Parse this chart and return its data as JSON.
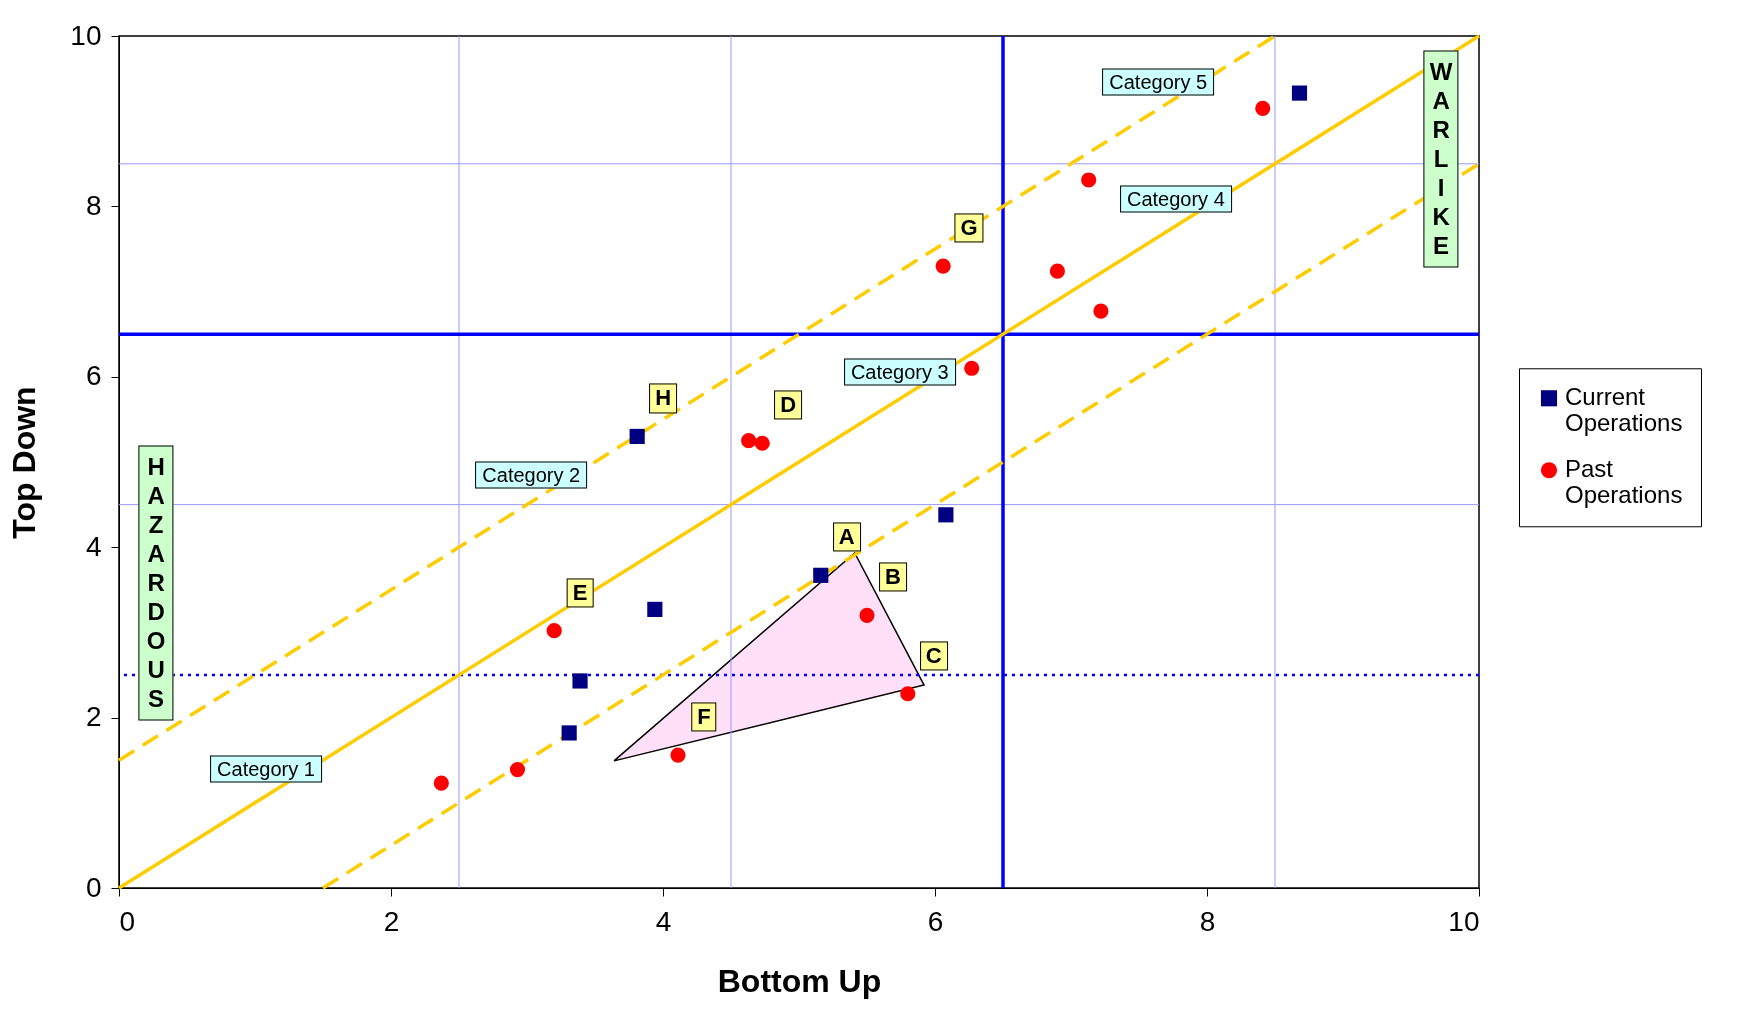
{
  "chart_data": {
    "type": "scatter",
    "xlabel": "Bottom Up",
    "ylabel": "Top Down",
    "xlim": [
      0,
      10
    ],
    "ylim": [
      0,
      10
    ],
    "xticks": [
      0,
      2,
      4,
      6,
      8,
      10
    ],
    "yticks": [
      0,
      2,
      4,
      6,
      8,
      10
    ],
    "grid": false,
    "legend": "right",
    "series": [
      {
        "name": "Current Operations",
        "marker": "square",
        "color": "#000080",
        "x": [
          8.68,
          3.81,
          6.08,
          5.16,
          3.94,
          3.39,
          3.31
        ],
        "values": [
          9.33,
          5.3,
          4.38,
          3.67,
          3.27,
          2.43,
          1.82
        ]
      },
      {
        "name": "Past Operations",
        "marker": "circle",
        "color": "#ff0000",
        "x": [
          8.41,
          7.13,
          6.06,
          6.9,
          7.22,
          6.27,
          4.63,
          4.73,
          5.5,
          3.2,
          5.8,
          4.11,
          2.93,
          2.37
        ],
        "values": [
          9.15,
          8.31,
          7.3,
          7.24,
          6.77,
          6.1,
          5.25,
          5.22,
          3.2,
          3.02,
          2.28,
          1.56,
          1.39,
          1.23
        ]
      },
      {
        "type": "line",
        "line_style": "solid",
        "color": "#ffcc00",
        "x": [
          0,
          10
        ],
        "values": [
          0,
          10
        ]
      },
      {
        "type": "line",
        "line_style": "dashed",
        "color": "#ffcc00",
        "x": [
          0,
          8.5
        ],
        "values": [
          1.5,
          10
        ]
      },
      {
        "type": "line",
        "line_style": "dashed",
        "color": "#ffcc00",
        "x": [
          1.5,
          10
        ],
        "values": [
          0,
          8.5
        ]
      }
    ],
    "ref_lines": [
      {
        "axis": "x",
        "value": 2.5,
        "color": "#9999ff",
        "line_style": "solid"
      },
      {
        "axis": "x",
        "value": 4.5,
        "color": "#9999ff",
        "line_style": "solid"
      },
      {
        "axis": "x",
        "value": 8.5,
        "color": "#9999ff",
        "line_style": "solid"
      },
      {
        "axis": "y",
        "value": 8.5,
        "color": "#9999ff",
        "line_style": "solid"
      },
      {
        "axis": "y",
        "value": 4.5,
        "color": "#9999ff",
        "line_style": "solid"
      },
      {
        "axis": "x",
        "value": 6.5,
        "color": "#0000ff",
        "line_style": "solid"
      },
      {
        "axis": "y",
        "value": 6.5,
        "color": "#0000ff",
        "line_style": "solid"
      },
      {
        "axis": "y",
        "value": 2.5,
        "color": "#0000ff",
        "line_style": "dotted"
      }
    ],
    "annotations": [
      {
        "text": "A",
        "x": 5.16,
        "y": 3.67
      },
      {
        "text": "B",
        "x": 5.5,
        "y": 3.2
      },
      {
        "text": "C",
        "x": 5.8,
        "y": 2.28
      },
      {
        "text": "D",
        "x": 4.73,
        "y": 5.22
      },
      {
        "text": "E",
        "x": 3.2,
        "y": 3.02
      },
      {
        "text": "F",
        "x": 4.11,
        "y": 1.56
      },
      {
        "text": "G",
        "x": 6.06,
        "y": 7.3
      },
      {
        "text": "H",
        "x": 3.81,
        "y": 5.3
      },
      {
        "text": "Category 1",
        "x": 1.14,
        "y": 1.14
      },
      {
        "text": "Category 2",
        "x": 3.09,
        "y": 4.59
      },
      {
        "text": "Category 3",
        "x": 5.8,
        "y": 5.8
      },
      {
        "text": "Category 4",
        "x": 7.83,
        "y": 7.83
      },
      {
        "text": "Category 5",
        "x": 7.7,
        "y": 9.2
      },
      "HAZARDOUS",
      "WARLIKE"
    ]
  }
}
